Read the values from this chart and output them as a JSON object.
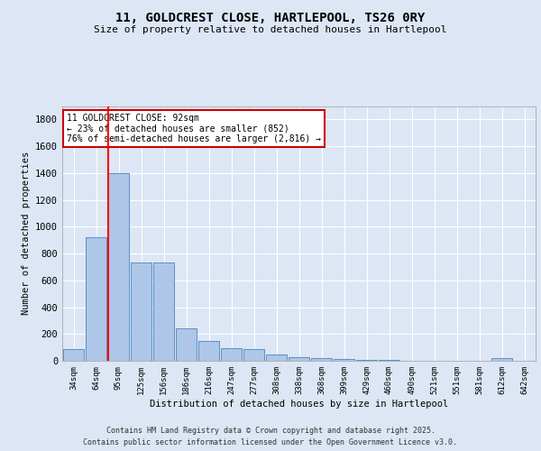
{
  "title": "11, GOLDCREST CLOSE, HARTLEPOOL, TS26 0RY",
  "subtitle": "Size of property relative to detached houses in Hartlepool",
  "xlabel": "Distribution of detached houses by size in Hartlepool",
  "ylabel": "Number of detached properties",
  "bar_labels": [
    "34sqm",
    "64sqm",
    "95sqm",
    "125sqm",
    "156sqm",
    "186sqm",
    "216sqm",
    "247sqm",
    "277sqm",
    "308sqm",
    "338sqm",
    "368sqm",
    "399sqm",
    "429sqm",
    "460sqm",
    "490sqm",
    "521sqm",
    "551sqm",
    "581sqm",
    "612sqm",
    "642sqm"
  ],
  "bar_values": [
    85,
    920,
    1400,
    730,
    730,
    245,
    145,
    95,
    90,
    50,
    25,
    20,
    15,
    5,
    5,
    3,
    2,
    1,
    0,
    20,
    0
  ],
  "bar_color": "#aec6e8",
  "bar_edge_color": "#5a8fc2",
  "red_line_bin_index": 2,
  "annotation_text": "11 GOLDCREST CLOSE: 92sqm\n← 23% of detached houses are smaller (852)\n76% of semi-detached houses are larger (2,816) →",
  "annotation_box_color": "#ffffff",
  "annotation_box_edge": "#cc0000",
  "footer_line1": "Contains HM Land Registry data © Crown copyright and database right 2025.",
  "footer_line2": "Contains public sector information licensed under the Open Government Licence v3.0.",
  "ylim": [
    0,
    1900
  ],
  "yticks": [
    0,
    200,
    400,
    600,
    800,
    1000,
    1200,
    1400,
    1600,
    1800
  ],
  "background_color": "#dce6f5",
  "plot_bg_color": "#dce6f5",
  "grid_color": "#ffffff",
  "figsize": [
    6.0,
    5.0
  ],
  "dpi": 100
}
